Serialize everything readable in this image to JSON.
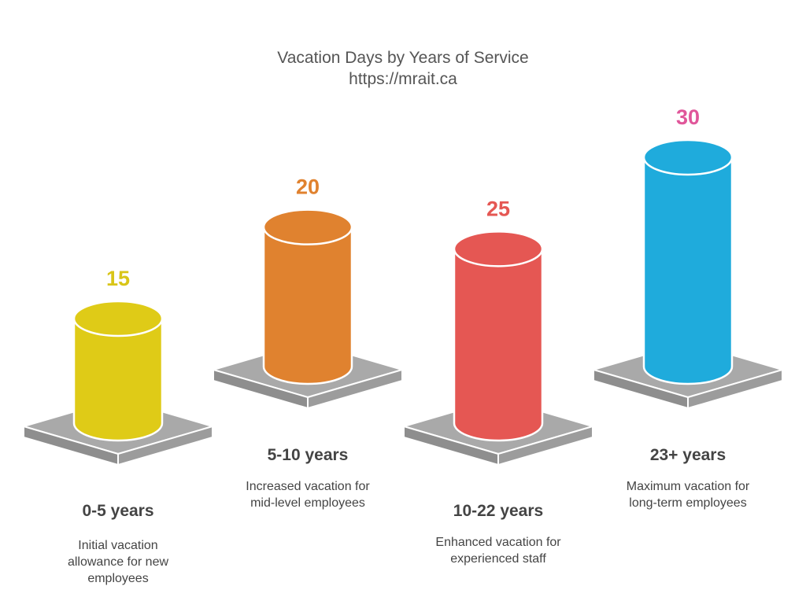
{
  "chart_data": {
    "type": "bar",
    "title": "Vacation Days by Years of Service",
    "subtitle": "https://mrait.ca",
    "categories": [
      "0-5 years",
      "5-10 years",
      "10-22 years",
      "23+ years"
    ],
    "values": [
      15,
      20,
      25,
      30
    ],
    "descriptions": [
      [
        "Initial vacation",
        "allowance for new",
        "employees"
      ],
      [
        "Increased vacation for",
        "mid-level employees"
      ],
      [
        "Enhanced vacation for",
        "experienced staff"
      ],
      [
        "Maximum vacation for",
        "long-term employees"
      ]
    ],
    "colors": [
      "#dfcb17",
      "#e0822f",
      "#e55753",
      "#1fabdc"
    ],
    "value_label_colors": [
      "#d9c518",
      "#e0822f",
      "#e55753",
      "#e0569a"
    ]
  }
}
